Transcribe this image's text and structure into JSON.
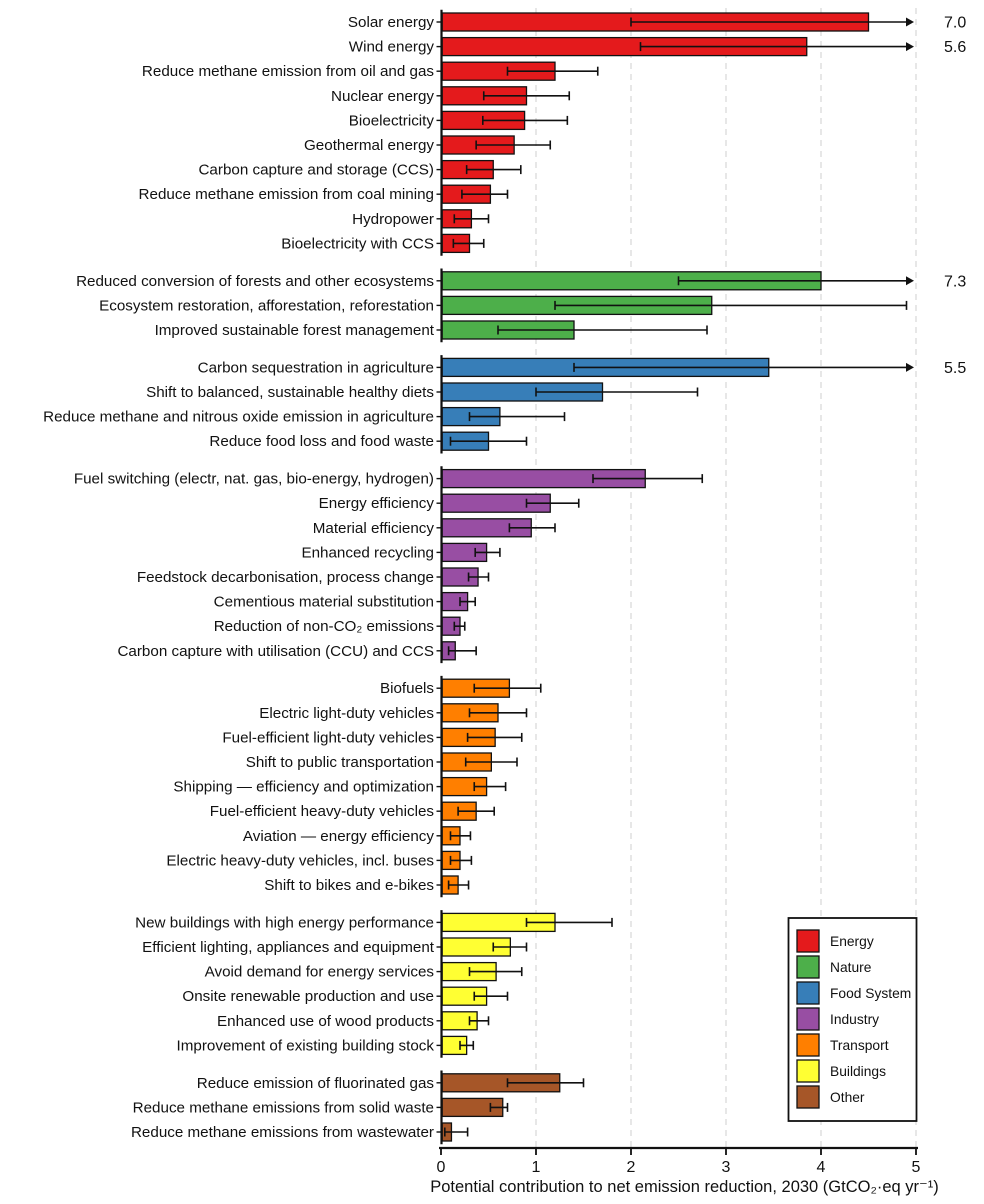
{
  "chart_data": {
    "type": "bar",
    "orientation": "horizontal",
    "title": "",
    "xlabel": "Potential contribution to net emission reduction, 2030 (GtCO₂·eq yr⁻¹)",
    "ylabel": "",
    "xlim": [
      0,
      5
    ],
    "x_ticks": [
      "0",
      "1",
      "2",
      "3",
      "4",
      "5"
    ],
    "grid": "vertical-dashed",
    "gridline_color": "#d7d7d7",
    "bar_outline_color": "#111111",
    "errorbar_color": "#111111",
    "legend": {
      "position": "bottom-right",
      "entries": [
        {
          "label": "Energy",
          "color": "#e41a1c"
        },
        {
          "label": "Nature",
          "color": "#4daf4a"
        },
        {
          "label": "Food System",
          "color": "#377eb8"
        },
        {
          "label": "Industry",
          "color": "#984ea3"
        },
        {
          "label": "Transport",
          "color": "#ff7f00"
        },
        {
          "label": "Buildings",
          "color": "#ffff33"
        },
        {
          "label": "Other",
          "color": "#a65628"
        }
      ]
    },
    "groups": [
      {
        "name": "Energy",
        "color": "#e41a1c",
        "rows": [
          {
            "label": "Solar energy",
            "value": 4.5,
            "err_lo": 2.0,
            "err_hi": 7.0,
            "hi_label": "7.0"
          },
          {
            "label": "Wind energy",
            "value": 3.85,
            "err_lo": 2.1,
            "err_hi": 5.6,
            "hi_label": "5.6"
          },
          {
            "label": "Reduce methane emission from oil and gas",
            "value": 1.2,
            "err_lo": 0.7,
            "err_hi": 1.65
          },
          {
            "label": "Nuclear energy",
            "value": 0.9,
            "err_lo": 0.45,
            "err_hi": 1.35
          },
          {
            "label": "Bioelectricity",
            "value": 0.88,
            "err_lo": 0.44,
            "err_hi": 1.33
          },
          {
            "label": "Geothermal energy",
            "value": 0.77,
            "err_lo": 0.37,
            "err_hi": 1.15
          },
          {
            "label": "Carbon capture and storage (CCS)",
            "value": 0.55,
            "err_lo": 0.27,
            "err_hi": 0.84
          },
          {
            "label": "Reduce methane emission from coal mining",
            "value": 0.52,
            "err_lo": 0.22,
            "err_hi": 0.7
          },
          {
            "label": "Hydropower",
            "value": 0.32,
            "err_lo": 0.14,
            "err_hi": 0.5
          },
          {
            "label": "Bioelectricity with CCS",
            "value": 0.3,
            "err_lo": 0.13,
            "err_hi": 0.45
          }
        ]
      },
      {
        "name": "Nature",
        "color": "#4daf4a",
        "rows": [
          {
            "label": "Reduced conversion of forests and other ecosystems",
            "value": 4.0,
            "err_lo": 2.5,
            "err_hi": 7.3,
            "hi_label": "7.3"
          },
          {
            "label": "Ecosystem restoration, afforestation, reforestation",
            "value": 2.85,
            "err_lo": 1.2,
            "err_hi": 4.9
          },
          {
            "label": "Improved sustainable forest management",
            "value": 1.4,
            "err_lo": 0.6,
            "err_hi": 2.8
          }
        ]
      },
      {
        "name": "Food System",
        "color": "#377eb8",
        "rows": [
          {
            "label": "Carbon sequestration in agriculture",
            "value": 3.45,
            "err_lo": 1.4,
            "err_hi": 5.5,
            "hi_label": "5.5"
          },
          {
            "label": "Shift to balanced, sustainable healthy diets",
            "value": 1.7,
            "err_lo": 1.0,
            "err_hi": 2.7
          },
          {
            "label": "Reduce methane and nitrous oxide emission in agriculture",
            "value": 0.62,
            "err_lo": 0.3,
            "err_hi": 1.3
          },
          {
            "label": "Reduce food loss and food waste",
            "value": 0.5,
            "err_lo": 0.1,
            "err_hi": 0.9
          }
        ]
      },
      {
        "name": "Industry",
        "color": "#984ea3",
        "rows": [
          {
            "label": "Fuel switching (electr, nat. gas, bio-energy, hydrogen)",
            "value": 2.15,
            "err_lo": 1.6,
            "err_hi": 2.75
          },
          {
            "label": "Energy efficiency",
            "value": 1.15,
            "err_lo": 0.9,
            "err_hi": 1.45
          },
          {
            "label": "Material efficiency",
            "value": 0.95,
            "err_lo": 0.72,
            "err_hi": 1.2
          },
          {
            "label": "Enhanced recycling",
            "value": 0.48,
            "err_lo": 0.36,
            "err_hi": 0.62
          },
          {
            "label": "Feedstock decarbonisation, process change",
            "value": 0.39,
            "err_lo": 0.29,
            "err_hi": 0.5
          },
          {
            "label": "Cementious material substitution",
            "value": 0.28,
            "err_lo": 0.2,
            "err_hi": 0.36
          },
          {
            "label": "Reduction of non-CO₂ emissions",
            "value": 0.2,
            "err_lo": 0.14,
            "err_hi": 0.25
          },
          {
            "label": "Carbon capture with utilisation (CCU) and CCS",
            "value": 0.15,
            "err_lo": 0.08,
            "err_hi": 0.37
          }
        ]
      },
      {
        "name": "Transport",
        "color": "#ff7f00",
        "rows": [
          {
            "label": "Biofuels",
            "value": 0.72,
            "err_lo": 0.35,
            "err_hi": 1.05
          },
          {
            "label": "Electric light-duty vehicles",
            "value": 0.6,
            "err_lo": 0.3,
            "err_hi": 0.9
          },
          {
            "label": "Fuel-efficient light-duty vehicles",
            "value": 0.57,
            "err_lo": 0.28,
            "err_hi": 0.85
          },
          {
            "label": "Shift to public transportation",
            "value": 0.53,
            "err_lo": 0.26,
            "err_hi": 0.8
          },
          {
            "label": "Shipping — efficiency and optimization",
            "value": 0.48,
            "err_lo": 0.35,
            "err_hi": 0.68
          },
          {
            "label": "Fuel-efficient heavy-duty vehicles",
            "value": 0.37,
            "err_lo": 0.18,
            "err_hi": 0.56
          },
          {
            "label": "Aviation — energy efficiency",
            "value": 0.2,
            "err_lo": 0.1,
            "err_hi": 0.31
          },
          {
            "label": "Electric heavy-duty vehicles, incl. buses",
            "value": 0.2,
            "err_lo": 0.1,
            "err_hi": 0.32
          },
          {
            "label": "Shift to bikes and e-bikes",
            "value": 0.18,
            "err_lo": 0.08,
            "err_hi": 0.29
          }
        ]
      },
      {
        "name": "Buildings",
        "color": "#ffff33",
        "rows": [
          {
            "label": "New buildings with high energy performance",
            "value": 1.2,
            "err_lo": 0.9,
            "err_hi": 1.8
          },
          {
            "label": "Efficient lighting, appliances and equipment",
            "value": 0.73,
            "err_lo": 0.55,
            "err_hi": 0.9
          },
          {
            "label": "Avoid demand for energy services",
            "value": 0.58,
            "err_lo": 0.3,
            "err_hi": 0.85
          },
          {
            "label": "Onsite renewable production and use",
            "value": 0.48,
            "err_lo": 0.35,
            "err_hi": 0.7
          },
          {
            "label": "Enhanced use of wood products",
            "value": 0.38,
            "err_lo": 0.3,
            "err_hi": 0.5
          },
          {
            "label": "Improvement of existing building stock",
            "value": 0.27,
            "err_lo": 0.2,
            "err_hi": 0.34
          }
        ]
      },
      {
        "name": "Other",
        "color": "#a65628",
        "rows": [
          {
            "label": "Reduce emission of fluorinated gas",
            "value": 1.25,
            "err_lo": 0.7,
            "err_hi": 1.5
          },
          {
            "label": "Reduce methane emissions from solid waste",
            "value": 0.65,
            "err_lo": 0.52,
            "err_hi": 0.7
          },
          {
            "label": "Reduce methane emissions from wastewater",
            "value": 0.11,
            "err_lo": 0.04,
            "err_hi": 0.28
          }
        ]
      }
    ]
  }
}
